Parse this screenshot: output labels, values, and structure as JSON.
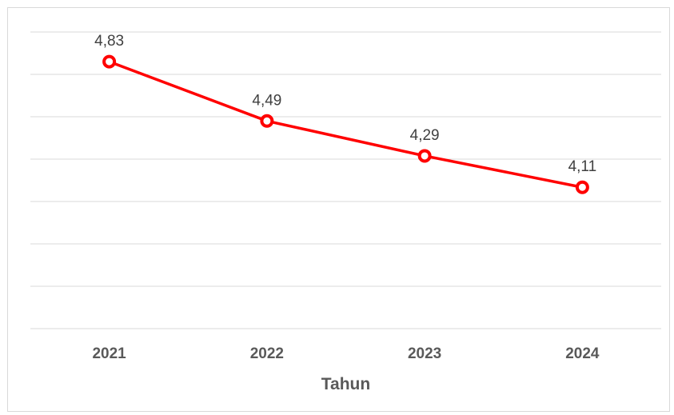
{
  "chart_data": {
    "type": "line",
    "categories": [
      "2021",
      "2022",
      "2023",
      "2024"
    ],
    "series": [
      {
        "values": [
          4.83,
          4.49,
          4.29,
          4.11
        ],
        "labels": [
          "4,83",
          "4,49",
          "4,29",
          "4,11"
        ],
        "color": "#ff0000"
      }
    ],
    "xlabel": "Tahun",
    "ylabel": "",
    "ylim": [
      3.3,
      5.0
    ],
    "grid": true,
    "gridline_count": 8
  },
  "colors": {
    "series": "#ff0000",
    "grid": "#d9d9d9",
    "text": "#595959"
  }
}
